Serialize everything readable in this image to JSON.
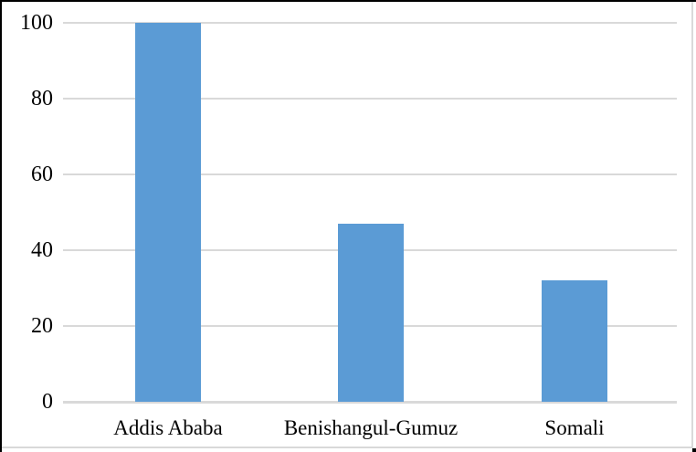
{
  "figure": {
    "background": "#ffffff",
    "outer_border_color": "#000000",
    "inner_border_color": "#d9d9d9"
  },
  "chart_data": {
    "type": "bar",
    "title": "",
    "xlabel": "",
    "ylabel": "",
    "categories": [
      "Addis Ababa",
      "Benishangul-Gumuz",
      "Somali"
    ],
    "values": [
      100,
      47,
      32
    ],
    "ylim": [
      0,
      100
    ],
    "yticks": [
      0,
      20,
      40,
      60,
      80,
      100
    ],
    "ytick_labels": [
      "0",
      "20",
      "40",
      "60",
      "80",
      "100"
    ],
    "grid": "horizontal",
    "gridline_color": "#d9d9d9",
    "axis_line_color": "#d9d9d9",
    "series_color": "#5b9bd5",
    "tick_label_color": "#000000",
    "legend": "none"
  }
}
